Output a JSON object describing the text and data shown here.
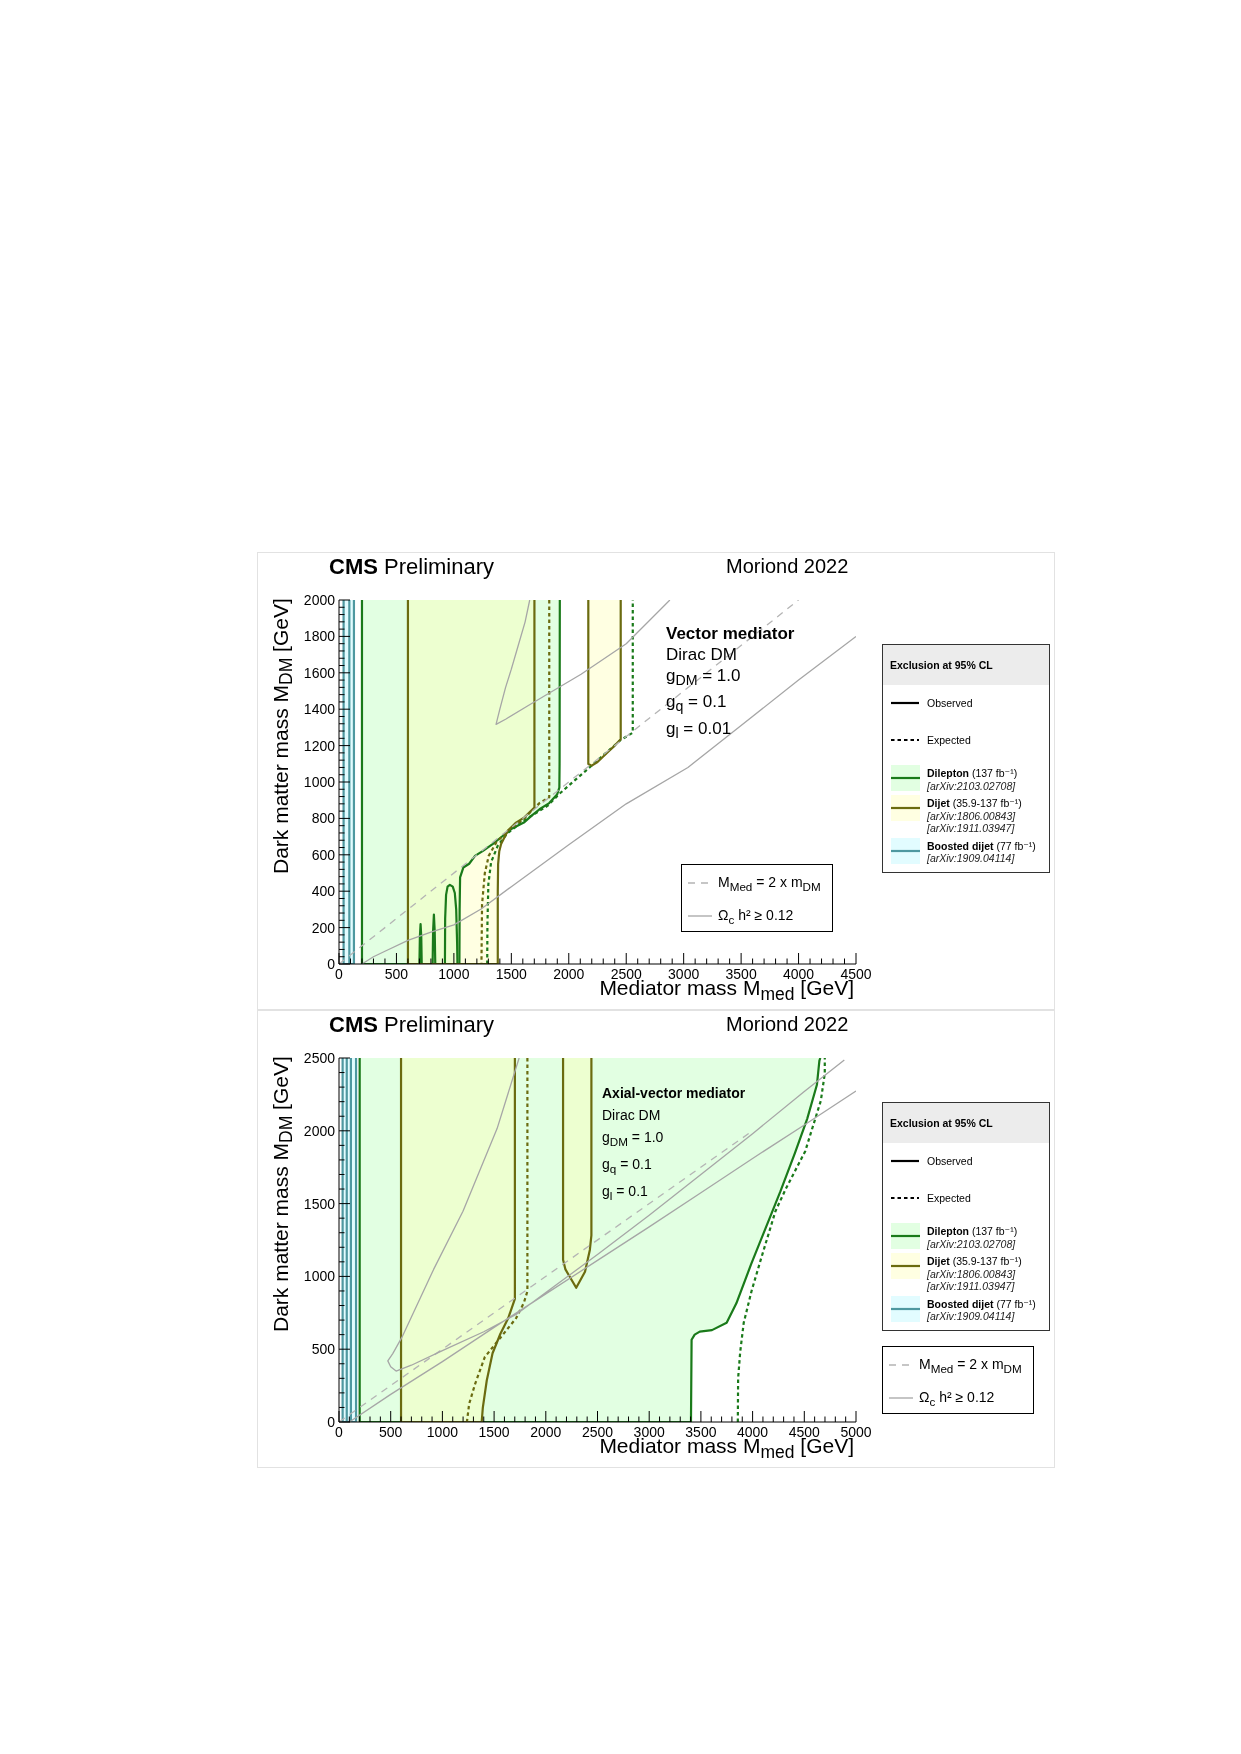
{
  "chart_data": [
    {
      "type": "line",
      "title": "CMS Preliminary",
      "subtitle": "Moriond 2022",
      "xlabel": "Mediator mass M$_{med}$ [GeV]",
      "ylabel": "Dark matter mass M$_{DM}$ [GeV]",
      "legend_title": "Exclusion at 95% CL",
      "legend": "right",
      "annotations": [
        "Vector mediator",
        "Dirac DM",
        "g$_{DM}$ = 1.0",
        "g$_{q}$ = 0.1",
        "g$_{l}$ = 0.01",
        "Observed",
        "Expected"
      ],
      "xlim": [
        0,
        4500
      ],
      "ylim": [
        0,
        2000
      ],
      "xticks": [
        0,
        {
          "value": 100,
          "label": null
        },
        {
          "value": 200,
          "label": null
        },
        {
          "value": 300,
          "label": null
        },
        {
          "value": 400,
          "label": null
        },
        500,
        {
          "value": 600,
          "label": null
        },
        {
          "value": 700,
          "label": null
        },
        {
          "value": 800,
          "label": null
        },
        {
          "value": 900,
          "label": null
        },
        1000,
        {
          "value": 1100,
          "label": null
        },
        {
          "value": 1200,
          "label": null
        },
        {
          "value": 1300,
          "label": null
        },
        {
          "value": 1400,
          "label": null
        },
        1500,
        {
          "value": 1600,
          "label": null
        },
        {
          "value": 1700,
          "label": null
        },
        {
          "value": 1800,
          "label": null
        },
        {
          "value": 1900,
          "label": null
        },
        2000,
        {
          "value": 2100,
          "label": null
        },
        {
          "value": 2200,
          "label": null
        },
        {
          "value": 2300,
          "label": null
        },
        {
          "value": 2400,
          "label": null
        },
        2500,
        {
          "value": 2600,
          "label": null
        },
        {
          "value": 2700,
          "label": null
        },
        {
          "value": 2800,
          "label": null
        },
        {
          "value": 2900,
          "label": null
        },
        3000,
        {
          "value": 3100,
          "label": null
        },
        {
          "value": 3200,
          "label": null
        },
        {
          "value": 3300,
          "label": null
        },
        {
          "value": 3400,
          "label": null
        },
        3500,
        {
          "value": 3600,
          "label": null
        },
        {
          "value": 3700,
          "label": null
        },
        {
          "value": 3800,
          "label": null
        },
        {
          "value": 3900,
          "label": null
        },
        4000,
        {
          "value": 4100,
          "label": null
        },
        {
          "value": 4200,
          "label": null
        },
        {
          "value": 4300,
          "label": null
        },
        {
          "value": 4400,
          "label": null
        },
        4500
      ],
      "yticks": [
        0,
        {
          "value": 40,
          "label": null
        },
        {
          "value": 80,
          "label": null
        },
        {
          "value": 120,
          "label": null
        },
        {
          "value": 160,
          "label": null
        },
        200,
        {
          "value": 240,
          "label": null
        },
        {
          "value": 280,
          "label": null
        },
        {
          "value": 320,
          "label": null
        },
        {
          "value": 360,
          "label": null
        },
        400,
        {
          "value": 440,
          "label": null
        },
        {
          "value": 480,
          "label": null
        },
        {
          "value": 520,
          "label": null
        },
        {
          "value": 560,
          "label": null
        },
        600,
        {
          "value": 640,
          "label": null
        },
        {
          "value": 680,
          "label": null
        },
        {
          "value": 720,
          "label": null
        },
        {
          "value": 760,
          "label": null
        },
        800,
        {
          "value": 840,
          "label": null
        },
        {
          "value": 880,
          "label": null
        },
        {
          "value": 920,
          "label": null
        },
        {
          "value": 960,
          "label": null
        },
        1000,
        {
          "value": 1040,
          "label": null
        },
        {
          "value": 1080,
          "label": null
        },
        {
          "value": 1120,
          "label": null
        },
        {
          "value": 1160,
          "label": null
        },
        1200,
        {
          "value": 1240,
          "label": null
        },
        {
          "value": 1280,
          "label": null
        },
        {
          "value": 1320,
          "label": null
        },
        {
          "value": 1360,
          "label": null
        },
        1400,
        {
          "value": 1440,
          "label": null
        },
        {
          "value": 1480,
          "label": null
        },
        {
          "value": 1520,
          "label": null
        },
        {
          "value": 1560,
          "label": null
        },
        1600,
        {
          "value": 1640,
          "label": null
        },
        {
          "value": 1680,
          "label": null
        },
        {
          "value": 1720,
          "label": null
        },
        {
          "value": 1760,
          "label": null
        },
        1800,
        {
          "value": 1840,
          "label": null
        },
        {
          "value": 1880,
          "label": null
        },
        {
          "value": 1920,
          "label": null
        },
        {
          "value": 1960,
          "label": null
        },
        2000
      ],
      "series": [
        {
          "name": "Dilepton (137 fb⁻¹)\n[arXiv:2103.02708]",
          "color": "#1a7a1a",
          "line_style": "solid",
          "x": [
            200,
            200,
            1048,
            1050,
            1054,
            1082,
            1133,
            1184,
            1250,
            1337,
            1422,
            1507,
            1609,
            1677,
            1745,
            1830,
            1898,
            1918,
            1920,
            1922
          ],
          "values": [
            2000,
            0,
            0,
            300,
            476,
            530,
            551,
            594,
            620,
            659,
            702,
            745,
            777,
            815,
            850,
            884,
            931,
            969,
            1100,
            2000
          ],
          "lower": [
            2000,
            0,
            0,
            300,
            476,
            530,
            551,
            594,
            620,
            659,
            702,
            745,
            777,
            815,
            850,
            884,
            931,
            969,
            1100,
            2000
          ],
          "upper": [
            2000,
            2000,
            2000,
            2000,
            2000,
            2000,
            2000,
            2000,
            2000,
            2000,
            2000,
            2000,
            2000,
            2000,
            2000,
            2000,
            2000,
            2000,
            2000,
            2000
          ]
        },
        {
          "color": "#1a7a1a",
          "line_style": "solid",
          "x": [
            700,
            704,
            710,
            716,
            720,
            null,
            815,
            819,
            826,
            833,
            838,
            null,
            922,
            924,
            932,
            945,
            965,
            990,
            1008,
            1020,
            1028,
            1031
          ],
          "values": [
            0,
            150,
            219,
            150,
            0,
            null,
            0,
            180,
            272,
            180,
            0,
            null,
            0,
            250,
            380,
            425,
            435,
            425,
            390,
            300,
            120,
            0
          ]
        },
        {
          "color": "#1a7a1a",
          "line_style": "dashed",
          "x": [
            1290,
            1292,
            1300,
            1324,
            1382,
            1469,
            1614,
            1817,
            1918,
            2195,
            2450,
            2557,
            2557
          ],
          "values": [
            0,
            220,
            439,
            560,
            650,
            720,
            790,
            870,
            935,
            1088,
            1230,
            1271,
            2000
          ]
        },
        {
          "name": "Dijet (35.9-137 fb⁻¹)\n[arXiv:1806.00843]\n[arXiv:1911.03947]",
          "color": "#6b6b10",
          "line_style": "solid",
          "x": [
            600,
            600,
            1382,
            1382,
            1385,
            1395,
            1411,
            1469,
            1541,
            1614,
            1701,
            1701,
            null,
            2170,
            2170,
            2200,
            2250,
            2300,
            2350,
            2400,
            2452,
            2452
          ],
          "values": [
            2000,
            0,
            0,
            400,
            549,
            620,
            659,
            732,
            777,
            806,
            860,
            2000,
            null,
            2000,
            1099,
            1090,
            1110,
            1140,
            1170,
            1200,
            1235,
            2000
          ],
          "lower": [
            2000,
            0,
            0,
            400,
            549,
            620,
            659,
            732,
            777,
            806,
            860,
            2000,
            null,
            2000,
            1099,
            1090,
            1110,
            1140,
            1170,
            1200,
            1235,
            2000
          ],
          "upper": [
            2000,
            2000,
            2000,
            2000,
            2000,
            2000,
            2000,
            2000,
            2000,
            2000,
            2000,
            2000,
            null,
            2000,
            2000,
            2000,
            2000,
            2000,
            2000,
            2000,
            2000,
            2000
          ]
        },
        {
          "color": "#6b6b10",
          "line_style": "dashed",
          "x": [
            1830,
            1830,
            1745,
            1609,
            1473,
            1371,
            1303,
            1269,
            1245,
            1240
          ],
          "values": [
            2000,
            916,
            884,
            798,
            734,
            670,
            594,
            498,
            326,
            0
          ]
        },
        {
          "name": "Boosted dijet (77 fb⁻¹)\n[arXiv:1909.04114]",
          "color": "#4e98a0",
          "line_style": "solid",
          "x": [
            40,
            40,
            130,
            130
          ],
          "values": [
            2000,
            0,
            0,
            2000
          ],
          "lower": [
            2000,
            0,
            0,
            2000
          ],
          "upper": [
            2000,
            2000,
            2000,
            2000
          ]
        },
        {
          "color": "#4e98a0",
          "line_style": "solid",
          "x": [
            90,
            90
          ],
          "values": [
            2000,
            0
          ]
        },
        {
          "name": "M$_{Med}$ = 2 x m$_{DM}$",
          "color": "#b4b4b4",
          "line_style": "dashed",
          "x": [
            0,
            4000
          ],
          "values": [
            0,
            2000
          ]
        },
        {
          "name": "Ω$_{c}$ h² ≥ 0.12",
          "color": "#a6a6a6",
          "line_style": "solid",
          "x": [
            200,
            300,
            400,
            600,
            800,
            1000,
            1237,
            1500,
            2000,
            2500,
            3037,
            3500,
            4000,
            4500,
            null,
            1660,
            1620,
            1560,
            1500,
            1450,
            1400,
            1367,
            1450,
            1677,
            2107,
            2500,
            2880
          ],
          "values": [
            0,
            40,
            70,
            130,
            175,
            215,
            302,
            425,
            655,
            880,
            1080,
            1310,
            1560,
            1800,
            null,
            2000,
            1880,
            1750,
            1620,
            1520,
            1400,
            1317,
            1345,
            1431,
            1592,
            1760,
            2000
          ]
        }
      ]
    },
    {
      "type": "line",
      "title": "CMS Preliminary",
      "subtitle": "Moriond 2022",
      "xlabel": "Mediator mass M$_{med}$ [GeV]",
      "ylabel": "Dark matter mass M$_{DM}$ [GeV]",
      "legend_title": "Exclusion at 95% CL",
      "legend": "right",
      "annotations": [
        "Axial-vector mediator",
        "Dirac DM",
        "g$_{DM}$ = 1.0",
        "g$_{q}$ = 0.1",
        "g$_{l}$ = 0.1",
        "Observed",
        "Expected"
      ],
      "xlim": [
        0,
        5000
      ],
      "ylim": [
        0,
        2500
      ],
      "xticks": [
        0,
        {
          "value": 100,
          "label": null
        },
        {
          "value": 200,
          "label": null
        },
        {
          "value": 300,
          "label": null
        },
        {
          "value": 400,
          "label": null
        },
        500,
        {
          "value": 600,
          "label": null
        },
        {
          "value": 700,
          "label": null
        },
        {
          "value": 800,
          "label": null
        },
        {
          "value": 900,
          "label": null
        },
        1000,
        {
          "value": 1100,
          "label": null
        },
        {
          "value": 1200,
          "label": null
        },
        {
          "value": 1300,
          "label": null
        },
        {
          "value": 1400,
          "label": null
        },
        1500,
        {
          "value": 1600,
          "label": null
        },
        {
          "value": 1700,
          "label": null
        },
        {
          "value": 1800,
          "label": null
        },
        {
          "value": 1900,
          "label": null
        },
        2000,
        {
          "value": 2100,
          "label": null
        },
        {
          "value": 2200,
          "label": null
        },
        {
          "value": 2300,
          "label": null
        },
        {
          "value": 2400,
          "label": null
        },
        2500,
        {
          "value": 2600,
          "label": null
        },
        {
          "value": 2700,
          "label": null
        },
        {
          "value": 2800,
          "label": null
        },
        {
          "value": 2900,
          "label": null
        },
        3000,
        {
          "value": 3100,
          "label": null
        },
        {
          "value": 3200,
          "label": null
        },
        {
          "value": 3300,
          "label": null
        },
        {
          "value": 3400,
          "label": null
        },
        3500,
        {
          "value": 3600,
          "label": null
        },
        {
          "value": 3700,
          "label": null
        },
        {
          "value": 3800,
          "label": null
        },
        {
          "value": 3900,
          "label": null
        },
        4000,
        {
          "value": 4100,
          "label": null
        },
        {
          "value": 4200,
          "label": null
        },
        {
          "value": 4300,
          "label": null
        },
        {
          "value": 4400,
          "label": null
        },
        4500,
        {
          "value": 4600,
          "label": null
        },
        {
          "value": 4700,
          "label": null
        },
        {
          "value": 4800,
          "label": null
        },
        {
          "value": 4900,
          "label": null
        },
        5000
      ],
      "yticks": [
        0,
        {
          "value": 100,
          "label": null
        },
        {
          "value": 200,
          "label": null
        },
        {
          "value": 300,
          "label": null
        },
        {
          "value": 400,
          "label": null
        },
        500,
        {
          "value": 600,
          "label": null
        },
        {
          "value": 700,
          "label": null
        },
        {
          "value": 800,
          "label": null
        },
        {
          "value": 900,
          "label": null
        },
        1000,
        {
          "value": 1100,
          "label": null
        },
        {
          "value": 1200,
          "label": null
        },
        {
          "value": 1300,
          "label": null
        },
        {
          "value": 1400,
          "label": null
        },
        1500,
        {
          "value": 1600,
          "label": null
        },
        {
          "value": 1700,
          "label": null
        },
        {
          "value": 1800,
          "label": null
        },
        {
          "value": 1900,
          "label": null
        },
        2000,
        {
          "value": 2100,
          "label": null
        },
        {
          "value": 2200,
          "label": null
        },
        {
          "value": 2300,
          "label": null
        },
        {
          "value": 2400,
          "label": null
        },
        2500
      ],
      "series": [
        {
          "name": "Dilepton (137 fb⁻¹)\n[arXiv:2103.02708]",
          "color": "#1a7a1a",
          "line_style": "solid",
          "x": [
            200,
            200,
            3404,
            3410,
            3440,
            3489,
            3607,
            3749,
            3843,
            3985,
            4126,
            4268,
            4410,
            4528,
            4622,
            4646,
            4655
          ],
          "values": [
            2500,
            0,
            0,
            565,
            600,
            621,
            631,
            681,
            815,
            1082,
            1332,
            1582,
            1849,
            2082,
            2316,
            2482,
            2500
          ],
          "lower": [
            2500,
            0,
            0,
            565,
            600,
            621,
            631,
            681,
            815,
            1082,
            1332,
            1582,
            1849,
            2082,
            2316,
            2482,
            2500
          ],
          "upper": [
            2500,
            2500,
            2500,
            2500,
            2500,
            2500,
            2500,
            2500,
            2500,
            2500,
            2500,
            2500,
            2500,
            2500,
            2500,
            2500,
            2500
          ]
        },
        {
          "color": "#1a7a1a",
          "line_style": "dashed",
          "x": [
            3857,
            3860,
            3880,
            3914,
            3990,
            4079,
            4221,
            4320,
            4509,
            4660,
            4698,
            4698
          ],
          "values": [
            0,
            300,
            481,
            681,
            900,
            1115,
            1448,
            1600,
            1860,
            2207,
            2394,
            2500
          ]
        },
        {
          "name": "Dijet (35.9-137 fb⁻¹)\n[arXiv:1806.00843]\n[arXiv:1911.03947]",
          "color": "#6b6b10",
          "line_style": "solid",
          "x": [
            600,
            600,
            1380,
            1391,
            1429,
            1485,
            1561,
            1636,
            1701,
            1701,
            null,
            2167,
            2167,
            2190,
            2294,
            2379,
            2426,
            2441,
            2441
          ],
          "values": [
            2500,
            0,
            0,
            99,
            285,
            472,
            606,
            712,
            846,
            2500,
            null,
            2500,
            1115,
            1048,
            922,
            1032,
            1182,
            1282,
            2500
          ],
          "lower": [
            2500,
            0,
            0,
            99,
            285,
            472,
            606,
            712,
            846,
            2500,
            null,
            2500,
            1115,
            1048,
            922,
            1032,
            1182,
            1282,
            2500
          ],
          "upper": [
            2500,
            2500,
            2500,
            2500,
            2500,
            2500,
            2500,
            2500,
            2500,
            2500,
            null,
            2500,
            2500,
            2500,
            2500,
            2500,
            2500,
            2500,
            2500
          ]
        },
        {
          "color": "#6b6b10",
          "line_style": "dashed",
          "x": [
            1822,
            1822,
            1788,
            1712,
            1561,
            1410,
            1315,
            1259,
            1237
          ],
          "values": [
            2500,
            898,
            819,
            712,
            579,
            446,
            259,
            125,
            0
          ]
        },
        {
          "name": "Boosted dijet (77 fb⁻¹)\n[arXiv:1909.04114]",
          "color": "#4e98a0",
          "line_style": "solid",
          "x": [
            35,
            35,
            165,
            165
          ],
          "values": [
            2500,
            0,
            0,
            2500
          ],
          "lower": [
            2500,
            0,
            0,
            2500
          ],
          "upper": [
            2500,
            2500,
            2500,
            2500
          ]
        },
        {
          "color": "#4e98a0",
          "line_style": "solid",
          "x": [
            75,
            75,
            null,
            115,
            115
          ],
          "values": [
            0,
            2500,
            null,
            2500,
            0
          ]
        },
        {
          "name": "M$_{Med}$ = 2 x m$_{DM}$",
          "color": "#b4b4b4",
          "line_style": "dashed",
          "x": [
            0,
            4000
          ],
          "values": [
            0,
            2000
          ]
        },
        {
          "name": "Ω$_{c}$ h² ≥ 0.12",
          "color": "#a6a6a6",
          "line_style": "solid",
          "x": [
            1742,
            1529,
            1199,
            915,
            608,
            520,
            472,
            500,
            552,
            700,
            1000,
            1400,
            1713,
            2000,
            2500,
            3000,
            3500,
            4000,
            4500,
            4887,
            null,
            100,
            500,
            1000,
            1500,
            2000,
            2500,
            3000,
            3500,
            4000,
            4500,
            5000
          ],
          "values": [
            2500,
            2015,
            1448,
            1048,
            581,
            470,
            420,
            380,
            350,
            390,
            490,
            620,
            739,
            890,
            1150,
            1420,
            1700,
            1980,
            2270,
            2487,
            null,
            0,
            190,
            415,
            650,
            880,
            1110,
            1340,
            1575,
            1810,
            2040,
            2273
          ]
        }
      ]
    }
  ]
}
